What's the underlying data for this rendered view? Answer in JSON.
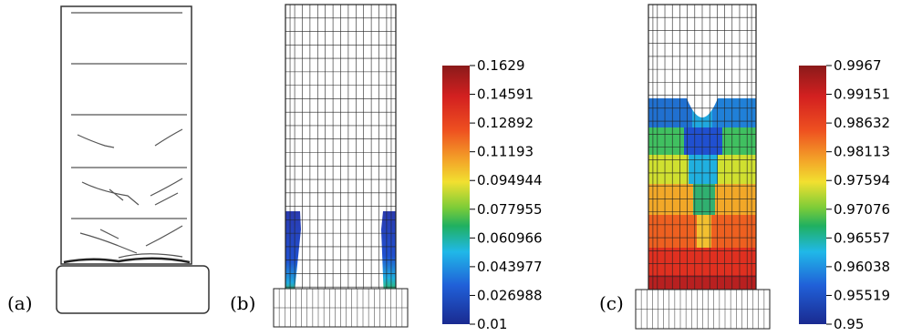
{
  "panels": [
    {
      "id": "a",
      "label": "(a)"
    },
    {
      "id": "b",
      "label": "(b)"
    },
    {
      "id": "c",
      "label": "(c)"
    }
  ],
  "colorbars": [
    {
      "panel": "b",
      "ticks": [
        "0.1629",
        "0.14591",
        "0.12892",
        "0.11193",
        "0.094944",
        "0.077955",
        "0.060966",
        "0.043977",
        "0.026988",
        "0.01"
      ]
    },
    {
      "panel": "c",
      "ticks": [
        "0.9967",
        "0.99151",
        "0.98632",
        "0.98113",
        "0.97594",
        "0.97076",
        "0.96557",
        "0.96038",
        "0.95519",
        "0.95"
      ]
    }
  ],
  "colors": {
    "scale_top": "#8b1a1a",
    "scale_red": "#e53020",
    "scale_orange": "#f08a20",
    "scale_yellow": "#f2e030",
    "scale_green": "#30b040",
    "scale_cyan": "#20b8e8",
    "scale_blue": "#2050d0",
    "scale_bottom": "#1a2a90",
    "mesh": "#222222"
  }
}
